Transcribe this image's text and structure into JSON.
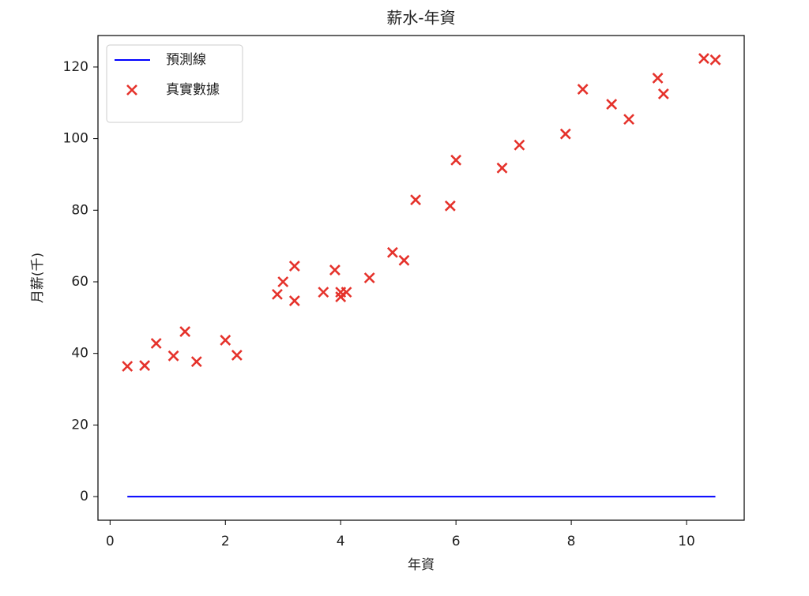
{
  "chart_data": {
    "type": "scatter",
    "title": "薪水-年資",
    "x_label": "年資",
    "y_label": "月薪(千)",
    "xlim": [
      -0.21,
      11.0
    ],
    "ylim": [
      -6.6,
      128.8
    ],
    "xticks": [
      0,
      2,
      4,
      6,
      8,
      10
    ],
    "yticks": [
      0,
      20,
      40,
      60,
      80,
      100,
      120
    ],
    "grid": false,
    "legend": "upper left",
    "series": [
      {
        "name": "預測線",
        "type": "line",
        "color": "#0000ff",
        "x": [
          0.3,
          10.5
        ],
        "values": [
          0,
          0
        ]
      },
      {
        "name": "真實數據",
        "type": "scatter",
        "color": "#e5322b",
        "x": [
          0.3,
          0.6,
          0.8,
          1.1,
          1.3,
          1.5,
          2.0,
          2.2,
          2.9,
          3.0,
          3.2,
          3.2,
          3.7,
          3.9,
          4.0,
          4.0,
          4.1,
          4.5,
          4.9,
          5.1,
          5.3,
          5.9,
          6.0,
          6.8,
          7.1,
          7.9,
          8.2,
          8.7,
          9.0,
          9.5,
          9.6,
          10.3,
          10.5
        ],
        "values": [
          36.4,
          36.6,
          42.8,
          39.3,
          46.1,
          37.7,
          43.7,
          39.5,
          56.5,
          60.0,
          64.4,
          54.7,
          57.1,
          63.3,
          55.8,
          57.1,
          57.1,
          61.1,
          68.2,
          66.0,
          82.9,
          81.2,
          94.0,
          91.8,
          98.2,
          101.3,
          113.8,
          109.6,
          105.4,
          116.9,
          112.5,
          122.4,
          122.0
        ]
      }
    ]
  }
}
